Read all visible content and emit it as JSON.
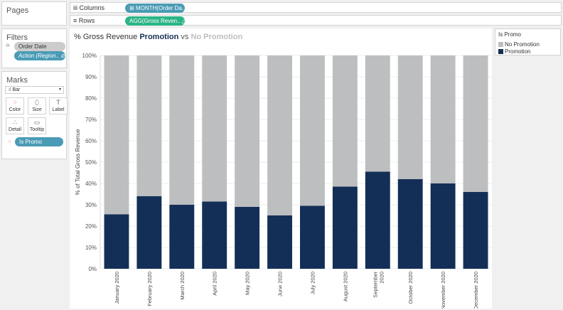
{
  "shelves": {
    "pages_title": "Pages",
    "columns_label": "Columns",
    "columns_pill": "MONTH(Order Da..",
    "rows_label": "Rows",
    "rows_pill": "AGG(Gross Reven.. △"
  },
  "filters": {
    "title": "Filters",
    "items": [
      "Order Date",
      "Action (Region.."
    ]
  },
  "marks": {
    "title": "Marks",
    "type": "Bar",
    "buttons": [
      "Color",
      "Size",
      "Label",
      "Detail",
      "Tooltip"
    ],
    "field": "Is Promo"
  },
  "legend": {
    "title": "Is Promo",
    "items": [
      {
        "label": "No Promotion",
        "color": "#bcbec0"
      },
      {
        "label": "Promotion",
        "color": "#142f57"
      }
    ]
  },
  "chart_title": {
    "part1": "% Gross Revenue ",
    "part2": "Promotion",
    "part3": " vs ",
    "part4": "No Promotion"
  },
  "chart_data": {
    "type": "bar",
    "stacked": true,
    "ylabel": "% of Total Gross Revenue",
    "ylim": [
      0,
      100
    ],
    "yticks": [
      "0%",
      "10%",
      "20%",
      "30%",
      "40%",
      "50%",
      "60%",
      "70%",
      "80%",
      "90%",
      "100%"
    ],
    "categories": [
      "January 2020",
      "February 2020",
      "March 2020",
      "April 2020",
      "May 2020",
      "June 2020",
      "July 2020",
      "August 2020",
      "September 2020",
      "October 2020",
      "November 2020",
      "December 2020"
    ],
    "series": [
      {
        "name": "Promotion",
        "color": "#142f57",
        "values": [
          25.5,
          34,
          30,
          31.5,
          29,
          25,
          29.5,
          38.5,
          45.5,
          42,
          40,
          36
        ]
      },
      {
        "name": "No Promotion",
        "color": "#bcbec0",
        "values": [
          74.5,
          66,
          70,
          68.5,
          71,
          75,
          70.5,
          61.5,
          54.5,
          58,
          60,
          64
        ]
      }
    ]
  }
}
